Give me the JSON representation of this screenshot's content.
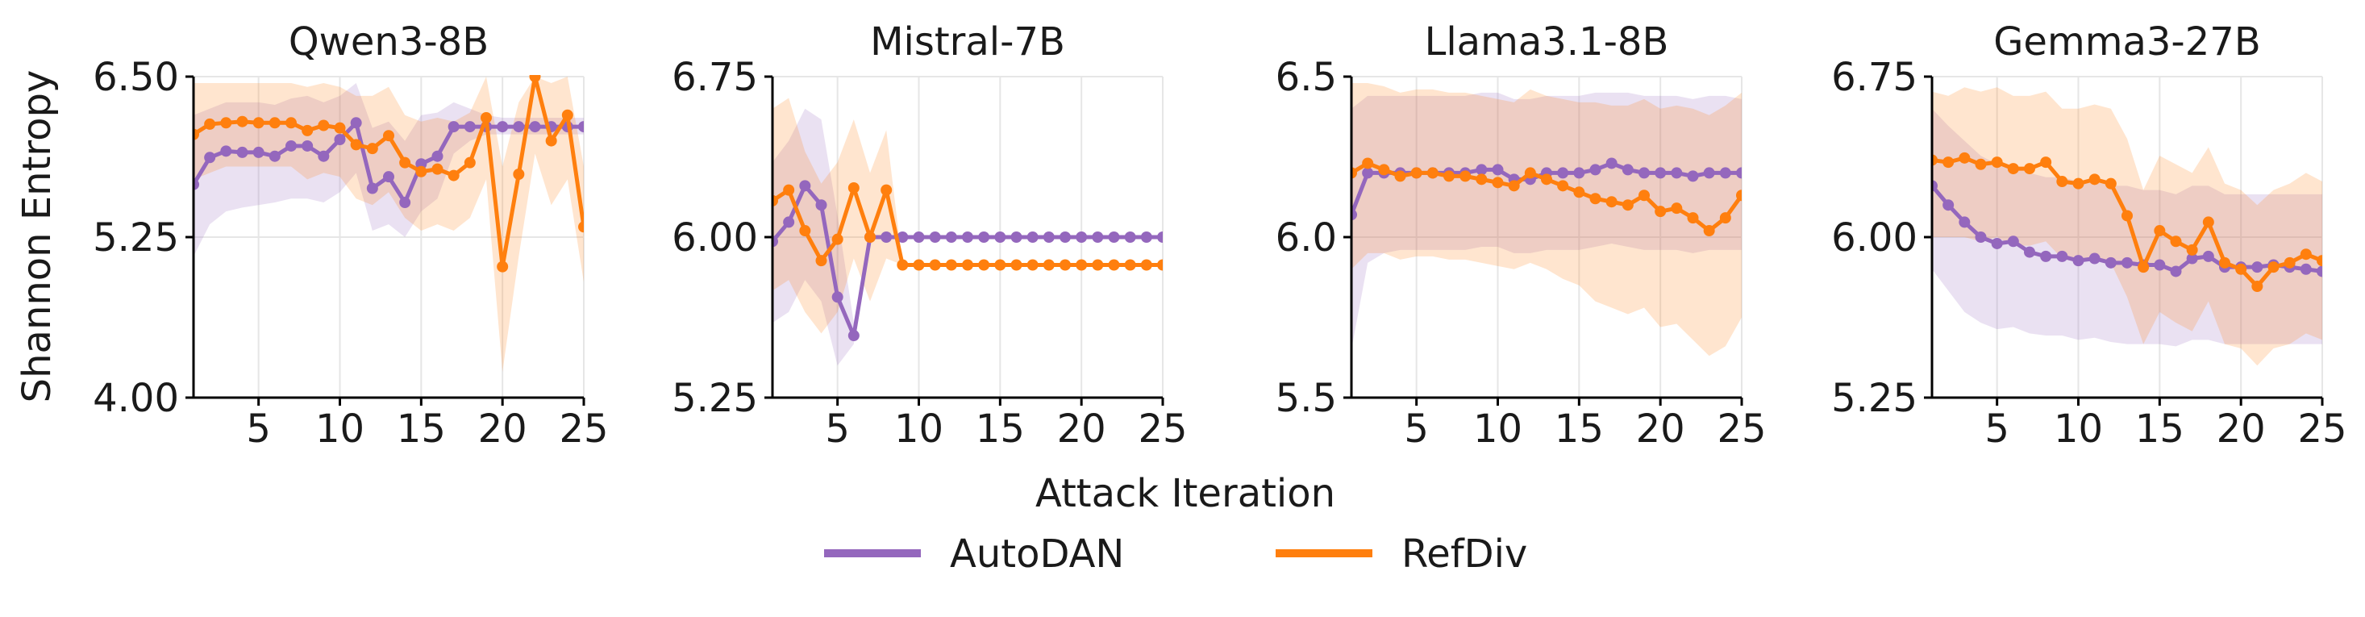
{
  "colors": {
    "AutoDAN": "#9467bd",
    "RefDiv": "#ff7f0e",
    "grid": "#e6e6e6",
    "axis": "#000000"
  },
  "legend": {
    "items": [
      "AutoDAN",
      "RefDiv"
    ],
    "placement": "bottom-center"
  },
  "figure": {
    "xlabel": "Attack Iteration",
    "ylabel": "Shannon Entropy"
  },
  "chart_data": [
    {
      "type": "line",
      "title": "Qwen3-8B",
      "xlabel": "Attack Iteration",
      "ylabel": "Shannon Entropy",
      "xlim": [
        1,
        25
      ],
      "ylim": [
        4.0,
        6.5
      ],
      "xticks": [
        5,
        10,
        15,
        20,
        25
      ],
      "yticks": [
        4.0,
        5.25,
        6.5
      ],
      "ytick_labels": [
        "4.00",
        "5.25",
        "6.50"
      ],
      "grid": true,
      "x": [
        1,
        2,
        3,
        4,
        5,
        6,
        7,
        8,
        9,
        10,
        11,
        12,
        13,
        14,
        15,
        16,
        17,
        18,
        19,
        20,
        21,
        22,
        23,
        24,
        25
      ],
      "series": [
        {
          "name": "AutoDAN",
          "values": [
            5.66,
            5.87,
            5.92,
            5.91,
            5.91,
            5.88,
            5.96,
            5.96,
            5.88,
            6.01,
            6.14,
            5.63,
            5.72,
            5.52,
            5.82,
            5.88,
            6.11,
            6.11,
            6.11,
            6.11,
            6.11,
            6.11,
            6.11,
            6.11,
            6.11
          ],
          "lower": [
            5.1,
            5.35,
            5.45,
            5.48,
            5.5,
            5.52,
            5.55,
            5.55,
            5.52,
            5.6,
            5.75,
            5.3,
            5.35,
            5.25,
            5.45,
            5.55,
            5.9,
            6.0,
            6.05,
            6.05,
            6.05,
            6.05,
            6.05,
            6.05,
            6.05
          ],
          "upper": [
            6.2,
            6.25,
            6.3,
            6.3,
            6.3,
            6.28,
            6.33,
            6.35,
            6.3,
            6.35,
            6.45,
            6.1,
            6.15,
            6.0,
            6.2,
            6.22,
            6.3,
            6.25,
            6.2,
            6.18,
            6.18,
            6.18,
            6.18,
            6.18,
            6.18
          ]
        },
        {
          "name": "RefDiv",
          "values": [
            6.05,
            6.13,
            6.14,
            6.15,
            6.14,
            6.14,
            6.14,
            6.08,
            6.12,
            6.1,
            5.97,
            5.94,
            6.04,
            5.83,
            5.76,
            5.78,
            5.73,
            5.83,
            6.18,
            5.02,
            5.74,
            6.5,
            6.0,
            6.2,
            5.33
          ],
          "lower": [
            5.7,
            5.75,
            5.8,
            5.8,
            5.8,
            5.8,
            5.8,
            5.7,
            5.75,
            5.72,
            5.55,
            5.5,
            5.6,
            5.4,
            5.3,
            5.35,
            5.3,
            5.4,
            5.7,
            4.2,
            5.1,
            5.9,
            5.5,
            5.7,
            4.9
          ],
          "upper": [
            6.45,
            6.45,
            6.45,
            6.45,
            6.45,
            6.45,
            6.45,
            6.42,
            6.45,
            6.42,
            6.35,
            6.35,
            6.42,
            6.2,
            6.15,
            6.18,
            6.15,
            6.22,
            6.5,
            5.8,
            6.3,
            6.5,
            6.45,
            6.5,
            5.8
          ]
        }
      ]
    },
    {
      "type": "line",
      "title": "Mistral-7B",
      "xlabel": "Attack Iteration",
      "ylabel": "",
      "xlim": [
        1,
        25
      ],
      "ylim": [
        5.25,
        6.75
      ],
      "xticks": [
        5,
        10,
        15,
        20,
        25
      ],
      "yticks": [
        5.25,
        6.0,
        6.75
      ],
      "ytick_labels": [
        "5.25",
        "6.00",
        "6.75"
      ],
      "grid": true,
      "x": [
        1,
        2,
        3,
        4,
        5,
        6,
        7,
        8,
        9,
        10,
        11,
        12,
        13,
        14,
        15,
        16,
        17,
        18,
        19,
        20,
        21,
        22,
        23,
        24,
        25
      ],
      "series": [
        {
          "name": "AutoDAN",
          "values": [
            5.98,
            6.07,
            6.24,
            6.15,
            5.72,
            5.54,
            6.0,
            6.0,
            6.0,
            6.0,
            6.0,
            6.0,
            6.0,
            6.0,
            6.0,
            6.0,
            6.0,
            6.0,
            6.0,
            6.0,
            6.0,
            6.0,
            6.0,
            6.0,
            6.0
          ],
          "lower": [
            5.6,
            5.65,
            5.8,
            5.7,
            5.4,
            5.5,
            6.0,
            6.0,
            6.0,
            6.0,
            6.0,
            6.0,
            6.0,
            6.0,
            6.0,
            6.0,
            6.0,
            6.0,
            6.0,
            6.0,
            6.0,
            6.0,
            6.0,
            6.0,
            6.0
          ],
          "upper": [
            6.35,
            6.45,
            6.6,
            6.55,
            6.1,
            5.6,
            6.0,
            6.0,
            6.0,
            6.0,
            6.0,
            6.0,
            6.0,
            6.0,
            6.0,
            6.0,
            6.0,
            6.0,
            6.0,
            6.0,
            6.0,
            6.0,
            6.0,
            6.0,
            6.0
          ]
        },
        {
          "name": "RefDiv",
          "values": [
            6.17,
            6.22,
            6.03,
            5.89,
            5.99,
            6.23,
            6.0,
            6.22,
            5.87,
            5.87,
            5.87,
            5.87,
            5.87,
            5.87,
            5.87,
            5.87,
            5.87,
            5.87,
            5.87,
            5.87,
            5.87,
            5.87,
            5.87,
            5.87,
            5.87
          ],
          "lower": [
            5.75,
            5.8,
            5.65,
            5.55,
            5.65,
            5.9,
            5.7,
            5.9,
            5.87,
            5.87,
            5.87,
            5.87,
            5.87,
            5.87,
            5.87,
            5.87,
            5.87,
            5.87,
            5.87,
            5.87,
            5.87,
            5.87,
            5.87,
            5.87,
            5.87
          ],
          "upper": [
            6.6,
            6.65,
            6.4,
            6.25,
            6.35,
            6.55,
            6.3,
            6.5,
            5.87,
            5.87,
            5.87,
            5.87,
            5.87,
            5.87,
            5.87,
            5.87,
            5.87,
            5.87,
            5.87,
            5.87,
            5.87,
            5.87,
            5.87,
            5.87,
            5.87
          ]
        }
      ]
    },
    {
      "type": "line",
      "title": "Llama3.1-8B",
      "xlabel": "Attack Iteration",
      "ylabel": "",
      "xlim": [
        1,
        25
      ],
      "ylim": [
        5.5,
        6.5
      ],
      "xticks": [
        5,
        10,
        15,
        20,
        25
      ],
      "yticks": [
        5.5,
        6.0,
        6.5
      ],
      "ytick_labels": [
        "5.5",
        "6.0",
        "6.5"
      ],
      "grid": true,
      "x": [
        1,
        2,
        3,
        4,
        5,
        6,
        7,
        8,
        9,
        10,
        11,
        12,
        13,
        14,
        15,
        16,
        17,
        18,
        19,
        20,
        21,
        22,
        23,
        24,
        25
      ],
      "series": [
        {
          "name": "AutoDAN",
          "values": [
            6.07,
            6.2,
            6.2,
            6.2,
            6.2,
            6.2,
            6.2,
            6.2,
            6.21,
            6.21,
            6.18,
            6.18,
            6.2,
            6.2,
            6.2,
            6.21,
            6.23,
            6.21,
            6.2,
            6.2,
            6.2,
            6.19,
            6.2,
            6.2,
            6.2
          ],
          "lower": [
            5.65,
            5.92,
            5.95,
            5.96,
            5.96,
            5.96,
            5.96,
            5.96,
            5.97,
            5.97,
            5.95,
            5.95,
            5.96,
            5.96,
            5.96,
            5.97,
            5.98,
            5.97,
            5.96,
            5.96,
            5.96,
            5.95,
            5.96,
            5.96,
            5.96
          ],
          "upper": [
            6.4,
            6.44,
            6.44,
            6.44,
            6.44,
            6.44,
            6.44,
            6.44,
            6.45,
            6.45,
            6.43,
            6.43,
            6.44,
            6.44,
            6.44,
            6.45,
            6.45,
            6.45,
            6.44,
            6.44,
            6.44,
            6.43,
            6.44,
            6.44,
            6.43
          ]
        },
        {
          "name": "RefDiv",
          "values": [
            6.2,
            6.23,
            6.21,
            6.19,
            6.2,
            6.2,
            6.19,
            6.19,
            6.18,
            6.17,
            6.16,
            6.2,
            6.18,
            6.16,
            6.14,
            6.12,
            6.11,
            6.1,
            6.13,
            6.08,
            6.09,
            6.06,
            6.02,
            6.06,
            6.13
          ],
          "lower": [
            5.9,
            5.95,
            5.95,
            5.93,
            5.94,
            5.94,
            5.93,
            5.93,
            5.92,
            5.91,
            5.9,
            5.92,
            5.9,
            5.87,
            5.85,
            5.8,
            5.78,
            5.76,
            5.78,
            5.72,
            5.73,
            5.68,
            5.63,
            5.66,
            5.75
          ],
          "upper": [
            6.48,
            6.48,
            6.47,
            6.45,
            6.46,
            6.46,
            6.45,
            6.45,
            6.44,
            6.43,
            6.42,
            6.46,
            6.44,
            6.43,
            6.42,
            6.42,
            6.41,
            6.41,
            6.43,
            6.4,
            6.41,
            6.4,
            6.38,
            6.41,
            6.45
          ]
        }
      ]
    },
    {
      "type": "line",
      "title": "Gemma3-27B",
      "xlabel": "Attack Iteration",
      "ylabel": "",
      "xlim": [
        1,
        25
      ],
      "ylim": [
        5.25,
        6.75
      ],
      "xticks": [
        5,
        10,
        15,
        20,
        25
      ],
      "yticks": [
        5.25,
        6.0,
        6.75
      ],
      "ytick_labels": [
        "5.25",
        "6.00",
        "6.75"
      ],
      "grid": true,
      "x": [
        1,
        2,
        3,
        4,
        5,
        6,
        7,
        8,
        9,
        10,
        11,
        12,
        13,
        14,
        15,
        16,
        17,
        18,
        19,
        20,
        21,
        22,
        23,
        24,
        25
      ],
      "series": [
        {
          "name": "AutoDAN",
          "values": [
            6.24,
            6.15,
            6.07,
            6.0,
            5.97,
            5.98,
            5.93,
            5.91,
            5.91,
            5.89,
            5.9,
            5.88,
            5.88,
            5.87,
            5.87,
            5.84,
            5.9,
            5.91,
            5.86,
            5.86,
            5.86,
            5.87,
            5.86,
            5.85,
            5.84
          ],
          "lower": [
            5.85,
            5.75,
            5.65,
            5.6,
            5.57,
            5.58,
            5.55,
            5.54,
            5.54,
            5.52,
            5.53,
            5.51,
            5.5,
            5.5,
            5.5,
            5.49,
            5.52,
            5.52,
            5.5,
            5.5,
            5.5,
            5.5,
            5.5,
            5.5,
            5.5
          ],
          "upper": [
            6.6,
            6.52,
            6.45,
            6.38,
            6.34,
            6.34,
            6.3,
            6.28,
            6.28,
            6.26,
            6.26,
            6.24,
            6.24,
            6.22,
            6.22,
            6.2,
            6.24,
            6.24,
            6.2,
            6.2,
            6.2,
            6.2,
            6.2,
            6.2,
            6.2
          ]
        },
        {
          "name": "RefDiv",
          "values": [
            6.36,
            6.35,
            6.37,
            6.34,
            6.35,
            6.32,
            6.32,
            6.35,
            6.26,
            6.25,
            6.27,
            6.25,
            6.1,
            5.86,
            6.03,
            5.98,
            5.94,
            6.07,
            5.88,
            5.85,
            5.77,
            5.86,
            5.88,
            5.92,
            5.89
          ],
          "lower": [
            6.0,
            6.0,
            6.0,
            5.98,
            6.0,
            5.96,
            5.96,
            5.98,
            5.9,
            5.88,
            5.9,
            5.88,
            5.72,
            5.5,
            5.65,
            5.6,
            5.56,
            5.7,
            5.5,
            5.48,
            5.4,
            5.48,
            5.5,
            5.55,
            5.52
          ],
          "upper": [
            6.68,
            6.66,
            6.7,
            6.68,
            6.7,
            6.66,
            6.66,
            6.68,
            6.6,
            6.6,
            6.62,
            6.6,
            6.46,
            6.22,
            6.38,
            6.34,
            6.3,
            6.42,
            6.25,
            6.22,
            6.15,
            6.22,
            6.25,
            6.3,
            6.26
          ]
        }
      ]
    }
  ]
}
